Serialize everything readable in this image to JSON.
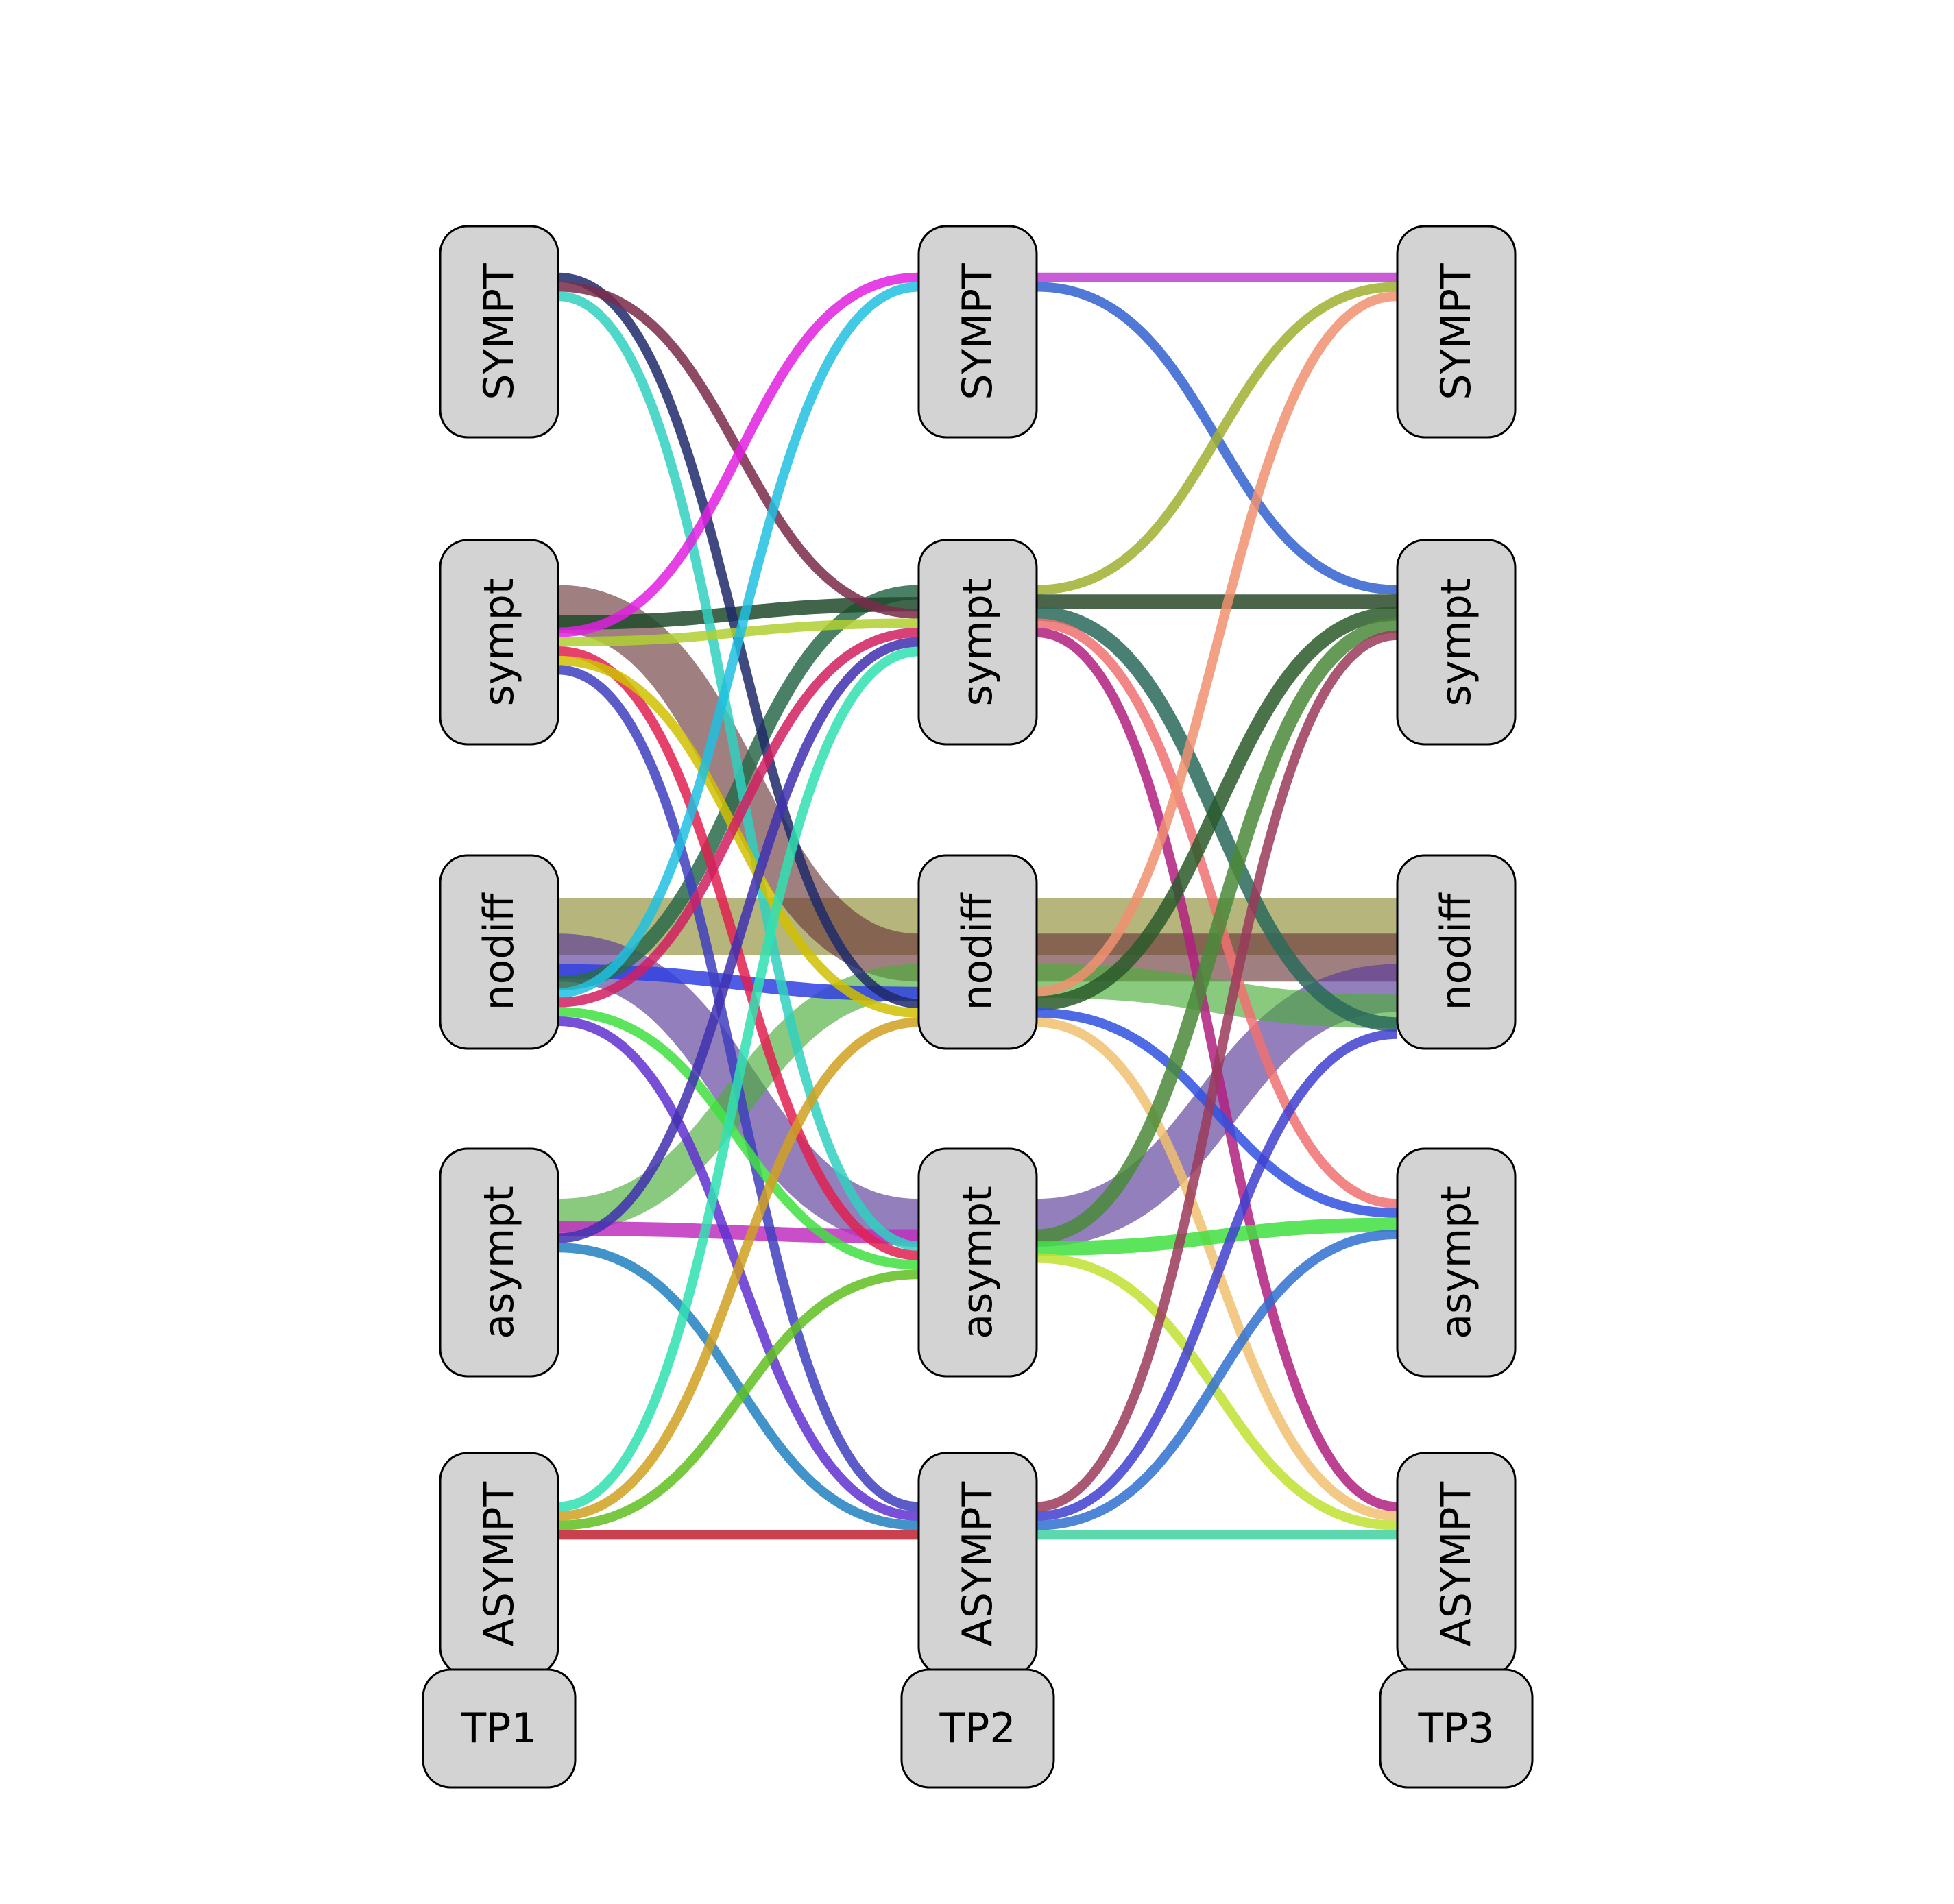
{
  "timepoints": [
    "TP1",
    "TP2",
    "TP3"
  ],
  "states": [
    "SYMPT",
    "sympt",
    "nodiff",
    "asympt",
    "ASYMPT"
  ],
  "flows": [
    {
      "from": [
        0,
        "nodiff"
      ],
      "to": [
        1,
        "nodiff"
      ],
      "weight": 6,
      "color": "#8f8f36"
    },
    {
      "from": [
        0,
        "sympt"
      ],
      "to": [
        1,
        "nodiff"
      ],
      "weight": 5,
      "color": "#6b3a3a"
    },
    {
      "from": [
        0,
        "nodiff"
      ],
      "to": [
        1,
        "asympt"
      ],
      "weight": 5,
      "color": "#5a3a9a"
    },
    {
      "from": [
        0,
        "asympt"
      ],
      "to": [
        1,
        "nodiff"
      ],
      "weight": 3.5,
      "color": "#4cad3a"
    },
    {
      "from": [
        0,
        "asympt"
      ],
      "to": [
        1,
        "asympt"
      ],
      "weight": 1.5,
      "color": "#c030c0"
    },
    {
      "from": [
        0,
        "nodiff"
      ],
      "to": [
        1,
        "nodiff"
      ],
      "weight": 1.5,
      "color": "#3040e0"
    },
    {
      "from": [
        0,
        "nodiff"
      ],
      "to": [
        1,
        "sympt"
      ],
      "weight": 1.5,
      "color": "#2a6a4a"
    },
    {
      "from": [
        0,
        "sympt"
      ],
      "to": [
        1,
        "sympt"
      ],
      "weight": 1.5,
      "color": "#1f4a2a"
    },
    {
      "from": [
        0,
        "SYMPT"
      ],
      "to": [
        1,
        "nodiff"
      ],
      "weight": 1,
      "color": "#1e2a6a"
    },
    {
      "from": [
        0,
        "SYMPT"
      ],
      "to": [
        1,
        "sympt"
      ],
      "weight": 1,
      "color": "#7a2a4a"
    },
    {
      "from": [
        0,
        "SYMPT"
      ],
      "to": [
        1,
        "asympt"
      ],
      "weight": 1,
      "color": "#30d0c0"
    },
    {
      "from": [
        0,
        "sympt"
      ],
      "to": [
        1,
        "SYMPT"
      ],
      "weight": 1,
      "color": "#e020e0"
    },
    {
      "from": [
        0,
        "sympt"
      ],
      "to": [
        1,
        "sympt"
      ],
      "weight": 1,
      "color": "#b0d030"
    },
    {
      "from": [
        0,
        "sympt"
      ],
      "to": [
        1,
        "asympt"
      ],
      "weight": 1,
      "color": "#e02050"
    },
    {
      "from": [
        0,
        "sympt"
      ],
      "to": [
        1,
        "nodiff"
      ],
      "weight": 1,
      "color": "#d0c000"
    },
    {
      "from": [
        0,
        "sympt"
      ],
      "to": [
        1,
        "ASYMPT"
      ],
      "weight": 1,
      "color": "#4040c0"
    },
    {
      "from": [
        0,
        "nodiff"
      ],
      "to": [
        1,
        "SYMPT"
      ],
      "weight": 1,
      "color": "#20c0e0"
    },
    {
      "from": [
        0,
        "nodiff"
      ],
      "to": [
        1,
        "sympt"
      ],
      "weight": 1,
      "color": "#d02060"
    },
    {
      "from": [
        0,
        "nodiff"
      ],
      "to": [
        1,
        "asympt"
      ],
      "weight": 1,
      "color": "#40e040"
    },
    {
      "from": [
        0,
        "nodiff"
      ],
      "to": [
        1,
        "ASYMPT"
      ],
      "weight": 1,
      "color": "#6030d0"
    },
    {
      "from": [
        0,
        "asympt"
      ],
      "to": [
        1,
        "sympt"
      ],
      "weight": 1,
      "color": "#4030b0"
    },
    {
      "from": [
        0,
        "asympt"
      ],
      "to": [
        1,
        "ASYMPT"
      ],
      "weight": 1,
      "color": "#2080c0"
    },
    {
      "from": [
        0,
        "ASYMPT"
      ],
      "to": [
        1,
        "sympt"
      ],
      "weight": 1,
      "color": "#30e0b0"
    },
    {
      "from": [
        0,
        "ASYMPT"
      ],
      "to": [
        1,
        "nodiff"
      ],
      "weight": 1,
      "color": "#d0a020"
    },
    {
      "from": [
        0,
        "ASYMPT"
      ],
      "to": [
        1,
        "asympt"
      ],
      "weight": 1,
      "color": "#60c020"
    },
    {
      "from": [
        0,
        "ASYMPT"
      ],
      "to": [
        1,
        "ASYMPT"
      ],
      "weight": 1,
      "color": "#c02030"
    },
    {
      "from": [
        1,
        "nodiff"
      ],
      "to": [
        2,
        "nodiff"
      ],
      "weight": 6,
      "color": "#8f8f36"
    },
    {
      "from": [
        1,
        "nodiff"
      ],
      "to": [
        2,
        "nodiff"
      ],
      "weight": 5,
      "color": "#6b3a3a"
    },
    {
      "from": [
        1,
        "asympt"
      ],
      "to": [
        2,
        "nodiff"
      ],
      "weight": 5,
      "color": "#5a3a9a"
    },
    {
      "from": [
        1,
        "nodiff"
      ],
      "to": [
        2,
        "nodiff"
      ],
      "weight": 3.5,
      "color": "#4cad3a"
    },
    {
      "from": [
        1,
        "SYMPT"
      ],
      "to": [
        2,
        "SYMPT"
      ],
      "weight": 1,
      "color": "#c040d0"
    },
    {
      "from": [
        1,
        "SYMPT"
      ],
      "to": [
        2,
        "sympt"
      ],
      "weight": 1,
      "color": "#3060d0"
    },
    {
      "from": [
        1,
        "sympt"
      ],
      "to": [
        2,
        "SYMPT"
      ],
      "weight": 1,
      "color": "#a0b030"
    },
    {
      "from": [
        1,
        "sympt"
      ],
      "to": [
        2,
        "sympt"
      ],
      "weight": 1.5,
      "color": "#2a4a2a"
    },
    {
      "from": [
        1,
        "sympt"
      ],
      "to": [
        2,
        "nodiff"
      ],
      "weight": 1.5,
      "color": "#2a6a5a"
    },
    {
      "from": [
        1,
        "sympt"
      ],
      "to": [
        2,
        "asympt"
      ],
      "weight": 1,
      "color": "#f07070"
    },
    {
      "from": [
        1,
        "sympt"
      ],
      "to": [
        2,
        "ASYMPT"
      ],
      "weight": 1,
      "color": "#b02080"
    },
    {
      "from": [
        1,
        "nodiff"
      ],
      "to": [
        2,
        "SYMPT"
      ],
      "weight": 1,
      "color": "#f09070"
    },
    {
      "from": [
        1,
        "nodiff"
      ],
      "to": [
        2,
        "sympt"
      ],
      "weight": 1.5,
      "color": "#2a5a2a"
    },
    {
      "from": [
        1,
        "nodiff"
      ],
      "to": [
        2,
        "asympt"
      ],
      "weight": 1,
      "color": "#3050e0"
    },
    {
      "from": [
        1,
        "nodiff"
      ],
      "to": [
        2,
        "ASYMPT"
      ],
      "weight": 1,
      "color": "#f0c070"
    },
    {
      "from": [
        1,
        "asympt"
      ],
      "to": [
        2,
        "sympt"
      ],
      "weight": 1.5,
      "color": "#4a8a3a"
    },
    {
      "from": [
        1,
        "asympt"
      ],
      "to": [
        2,
        "asympt"
      ],
      "weight": 1.5,
      "color": "#40e040"
    },
    {
      "from": [
        1,
        "asympt"
      ],
      "to": [
        2,
        "ASYMPT"
      ],
      "weight": 1,
      "color": "#c0e030"
    },
    {
      "from": [
        1,
        "ASYMPT"
      ],
      "to": [
        2,
        "sympt"
      ],
      "weight": 1,
      "color": "#9a3a5a"
    },
    {
      "from": [
        1,
        "ASYMPT"
      ],
      "to": [
        2,
        "nodiff"
      ],
      "weight": 1,
      "color": "#4040d0"
    },
    {
      "from": [
        1,
        "ASYMPT"
      ],
      "to": [
        2,
        "asympt"
      ],
      "weight": 1,
      "color": "#3070d0"
    },
    {
      "from": [
        1,
        "ASYMPT"
      ],
      "to": [
        2,
        "ASYMPT"
      ],
      "weight": 1,
      "color": "#40d0a0"
    }
  ],
  "colors": {
    "node_fill": "#d3d3d3",
    "node_stroke": "#000000",
    "background": "#ffffff"
  }
}
